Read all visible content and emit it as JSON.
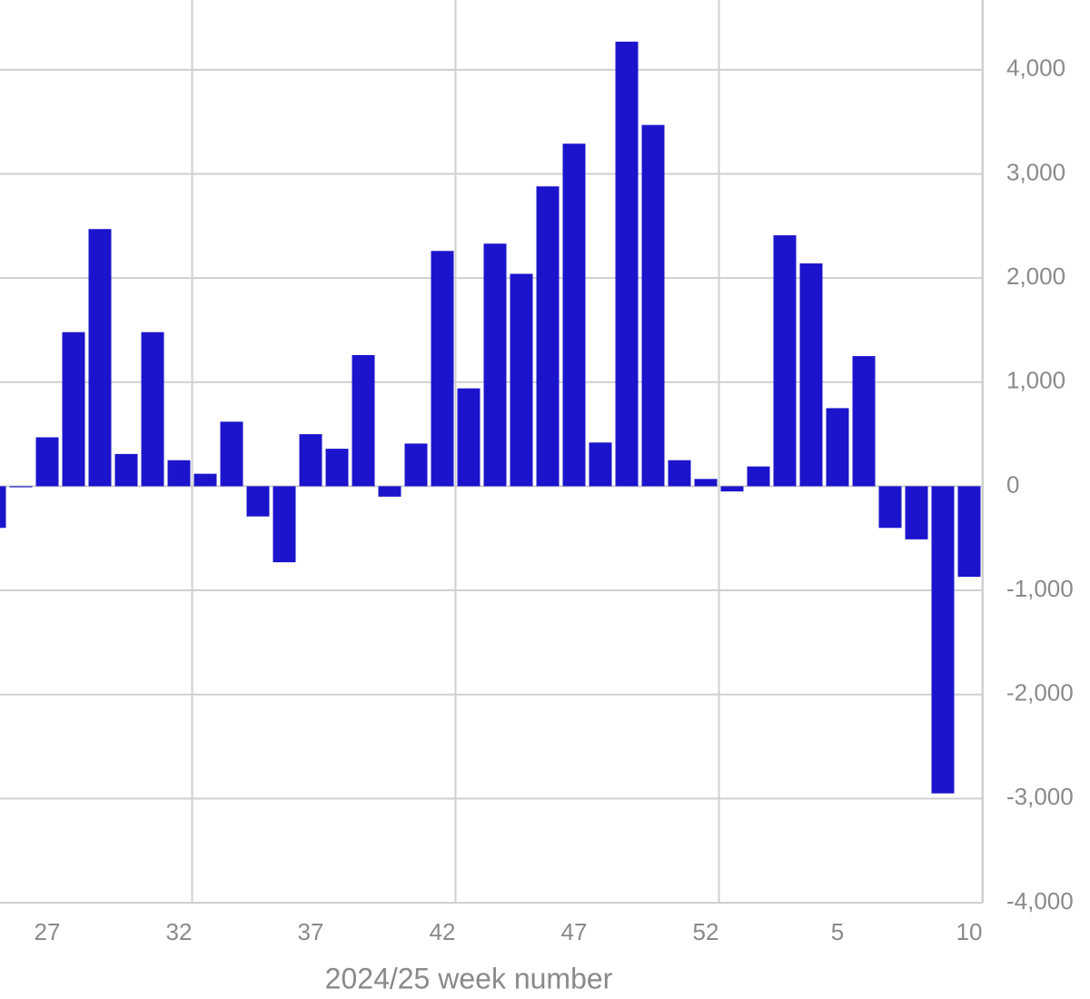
{
  "chart_data": {
    "type": "bar",
    "x_label": "2024/25 week number",
    "categories": [
      null,
      null,
      "27",
      null,
      null,
      null,
      null,
      "32",
      null,
      null,
      null,
      null,
      "37",
      null,
      null,
      null,
      null,
      "42",
      null,
      null,
      null,
      null,
      "47",
      null,
      null,
      null,
      null,
      "52",
      null,
      null,
      null,
      null,
      "5",
      null,
      null,
      null,
      null,
      "10"
    ],
    "values": [
      -400,
      -10,
      470,
      1480,
      2470,
      310,
      1480,
      250,
      120,
      620,
      -290,
      -730,
      500,
      360,
      1260,
      -100,
      410,
      2260,
      940,
      2330,
      2040,
      2880,
      3290,
      420,
      4270,
      3470,
      250,
      70,
      -50,
      190,
      2410,
      2140,
      750,
      1250,
      -400,
      -510,
      -2950,
      -870
    ],
    "color": "#1c14cc",
    "ylim": [
      -4000,
      4670
    ],
    "yticks": [
      {
        "value": -4000,
        "label": "-4,000"
      },
      {
        "value": -3000,
        "label": "-3,000"
      },
      {
        "value": -2000,
        "label": "-2,000"
      },
      {
        "value": -1000,
        "label": "-1,000"
      },
      0,
      {
        "value": 1000,
        "label": "1,000"
      },
      {
        "value": 2000,
        "label": "2,000"
      },
      {
        "value": 3000,
        "label": "3,000"
      },
      {
        "value": 4000,
        "label": "4,000"
      }
    ],
    "grid": true
  }
}
